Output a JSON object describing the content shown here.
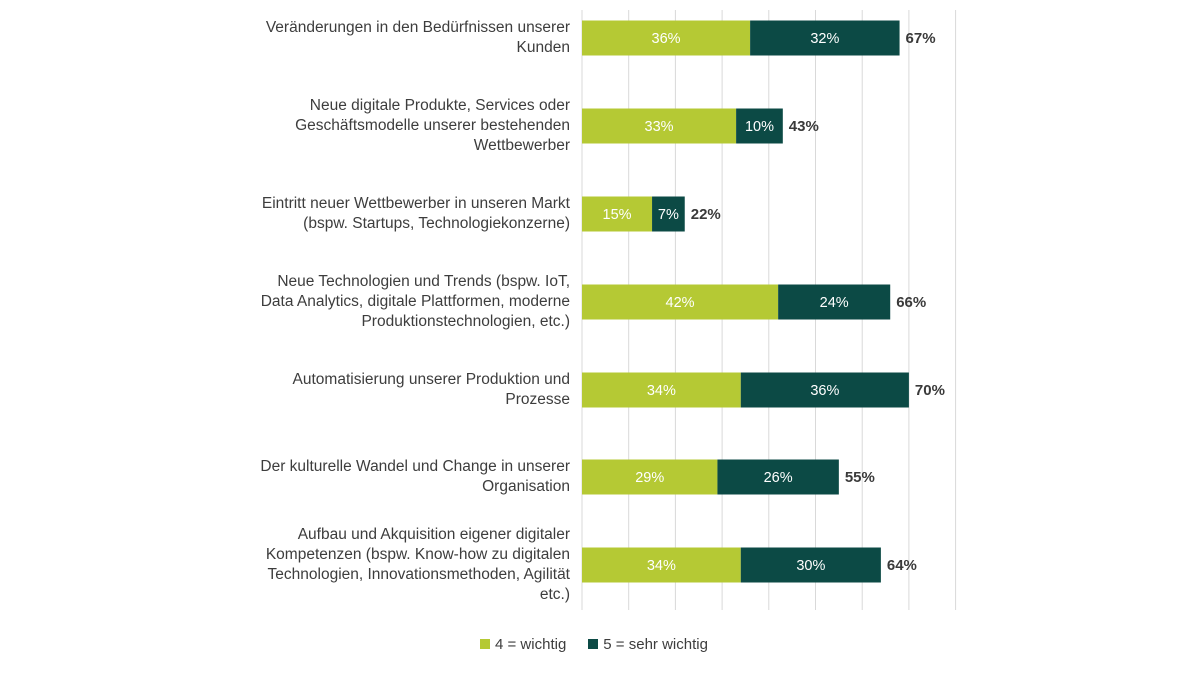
{
  "colors": {
    "wichtig": "#b5c934",
    "sehr_wichtig": "#0c4a45",
    "grid": "#d9d9d9"
  },
  "chart_data": {
    "type": "bar",
    "orientation": "horizontal",
    "stacked": true,
    "categories": [
      [
        "Veränderungen in den Bedürfnissen unserer",
        "Kunden"
      ],
      [
        "Neue digitale Produkte, Services oder",
        "Geschäftsmodelle unserer bestehenden",
        "Wettbewerber"
      ],
      [
        "Eintritt neuer Wettbewerber in unseren Markt",
        "(bspw. Startups, Technologiekonzerne)"
      ],
      [
        "Neue Technologien und Trends (bspw. IoT,",
        "Data Analytics, digitale Plattformen, moderne",
        "Produktionstechnologien, etc.)"
      ],
      [
        "Automatisierung unserer Produktion und",
        "Prozesse"
      ],
      [
        "Der kulturelle Wandel und Change in unserer",
        "Organisation"
      ],
      [
        "Aufbau und Akquisition eigener digitaler",
        "Kompetenzen (bspw. Know-how zu digitalen",
        "Technologien, Innovationsmethoden, Agilität",
        "etc.)"
      ]
    ],
    "series": [
      {
        "name": "4 = wichtig",
        "values": [
          36,
          33,
          15,
          42,
          34,
          29,
          34
        ],
        "labels": [
          "36%",
          "33%",
          "15%",
          "42%",
          "34%",
          "29%",
          "34%"
        ]
      },
      {
        "name": "5 = sehr wichtig",
        "values": [
          32,
          10,
          7,
          24,
          36,
          26,
          30
        ],
        "labels": [
          "32%",
          "10%",
          "7%",
          "24%",
          "36%",
          "26%",
          "30%"
        ]
      }
    ],
    "totals": [
      "67%",
      "43%",
      "22%",
      "66%",
      "70%",
      "55%",
      "64%"
    ],
    "xlim": [
      0,
      80
    ],
    "grid": true,
    "legend_position": "bottom"
  },
  "legend": {
    "wichtig": "4 = wichtig",
    "sehr_wichtig": "5 = sehr wichtig"
  }
}
